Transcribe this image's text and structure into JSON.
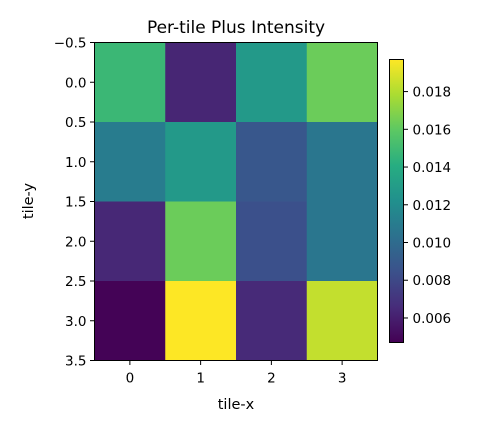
{
  "chart_data": {
    "type": "heatmap",
    "title": "Per-tile Plus Intensity",
    "xlabel": "tile-x",
    "ylabel": "tile-y",
    "x_categories": [
      "0",
      "1",
      "2",
      "3"
    ],
    "y_categories": [
      "0",
      "1",
      "2",
      "3"
    ],
    "values": [
      [
        0.0148,
        0.0063,
        0.0128,
        0.0163
      ],
      [
        0.011,
        0.0128,
        0.0088,
        0.0106
      ],
      [
        0.0064,
        0.0163,
        0.0084,
        0.0106
      ],
      [
        0.0048,
        0.0197,
        0.0065,
        0.0184
      ]
    ],
    "x_ticks": [
      "0",
      "1",
      "2",
      "3"
    ],
    "y_ticks": [
      "−0.5",
      "0.0",
      "0.5",
      "1.0",
      "1.5",
      "2.0",
      "2.5",
      "3.0",
      "3.5"
    ],
    "xlim": [
      -0.5,
      3.5
    ],
    "ylim": [
      3.5,
      -0.5
    ],
    "colormap": "viridis",
    "colorbar": {
      "range": [
        0.0047,
        0.0197
      ],
      "ticks": [
        "0.006",
        "0.008",
        "0.010",
        "0.012",
        "0.014",
        "0.016",
        "0.018"
      ]
    },
    "grid": false
  }
}
